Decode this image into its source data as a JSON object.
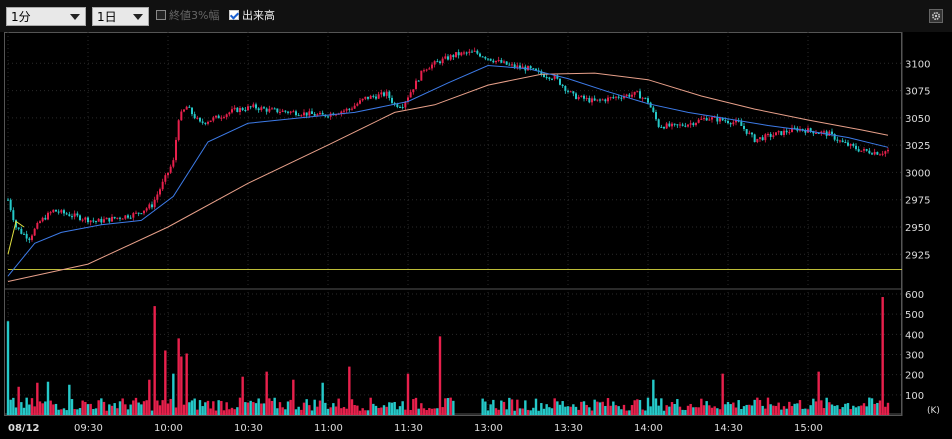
{
  "toolbar": {
    "interval_select": "1分",
    "range_select": "1日",
    "close3_label": "終値3%幅",
    "close3_checked": false,
    "volume_label": "出来高",
    "volume_checked": true,
    "settings_icon": "gear-icon"
  },
  "colors": {
    "up": "#e8204c",
    "down": "#25c9c9",
    "ma_short": "#3d7be8",
    "ma_long": "#e8a08a",
    "ma_first": "#e0e040",
    "base_line": "#d8d840",
    "background": "#000000"
  },
  "chart_data": [
    {
      "type": "candlestick",
      "ylim": [
        2895,
        3125
      ],
      "y_ticks": [
        "3100",
        "3075",
        "3050",
        "3025",
        "3000",
        "2975",
        "2950",
        "2925"
      ],
      "x_ticks": [
        "08/12",
        "09:30",
        "10:00",
        "10:30",
        "11:00",
        "11:30",
        "13:00",
        "13:30",
        "14:00",
        "14:30",
        "15:00"
      ],
      "x_tick_times": [
        0,
        30,
        60,
        90,
        120,
        150,
        180,
        210,
        240,
        270,
        300
      ],
      "reference_line": 2911,
      "price_path": [
        [
          0,
          2975
        ],
        [
          3,
          2950
        ],
        [
          5,
          2945
        ],
        [
          8,
          2940
        ],
        [
          12,
          2955
        ],
        [
          17,
          2965
        ],
        [
          25,
          2960
        ],
        [
          33,
          2955
        ],
        [
          40,
          2958
        ],
        [
          48,
          2962
        ],
        [
          54,
          2970
        ],
        [
          58,
          2990
        ],
        [
          62,
          3010
        ],
        [
          64,
          3050
        ],
        [
          67,
          3060
        ],
        [
          72,
          3045
        ],
        [
          78,
          3050
        ],
        [
          85,
          3057
        ],
        [
          92,
          3060
        ],
        [
          98,
          3057
        ],
        [
          108,
          3055
        ],
        [
          118,
          3052
        ],
        [
          128,
          3058
        ],
        [
          134,
          3068
        ],
        [
          138,
          3070
        ],
        [
          142,
          3072
        ],
        [
          145,
          3062
        ],
        [
          148,
          3062
        ],
        [
          152,
          3078
        ],
        [
          156,
          3095
        ],
        [
          162,
          3102
        ],
        [
          168,
          3108
        ],
        [
          175,
          3110
        ],
        [
          182,
          3103
        ],
        [
          188,
          3098
        ],
        [
          195,
          3095
        ],
        [
          200,
          3090
        ],
        [
          205,
          3087
        ],
        [
          212,
          3070
        ],
        [
          220,
          3065
        ],
        [
          230,
          3070
        ],
        [
          236,
          3072
        ],
        [
          240,
          3065
        ],
        [
          244,
          3043
        ],
        [
          250,
          3042
        ],
        [
          256,
          3045
        ],
        [
          262,
          3050
        ],
        [
          268,
          3048
        ],
        [
          274,
          3045
        ],
        [
          280,
          3030
        ],
        [
          288,
          3035
        ],
        [
          296,
          3040
        ],
        [
          304,
          3037
        ],
        [
          308,
          3035
        ],
        [
          313,
          3027
        ],
        [
          320,
          3020
        ],
        [
          327,
          3018
        ],
        [
          330,
          3020
        ]
      ],
      "ma_short": [
        [
          0,
          2905
        ],
        [
          10,
          2935
        ],
        [
          20,
          2945
        ],
        [
          35,
          2952
        ],
        [
          50,
          2956
        ],
        [
          62,
          2978
        ],
        [
          75,
          3028
        ],
        [
          90,
          3045
        ],
        [
          110,
          3050
        ],
        [
          130,
          3055
        ],
        [
          150,
          3065
        ],
        [
          165,
          3082
        ],
        [
          180,
          3098
        ],
        [
          195,
          3095
        ],
        [
          210,
          3086
        ],
        [
          225,
          3074
        ],
        [
          240,
          3063
        ],
        [
          255,
          3055
        ],
        [
          270,
          3049
        ],
        [
          285,
          3043
        ],
        [
          300,
          3038
        ],
        [
          315,
          3032
        ],
        [
          330,
          3023
        ]
      ],
      "ma_long": [
        [
          0,
          2900
        ],
        [
          30,
          2916
        ],
        [
          60,
          2950
        ],
        [
          90,
          2990
        ],
        [
          120,
          3025
        ],
        [
          145,
          3055
        ],
        [
          160,
          3062
        ],
        [
          180,
          3080
        ],
        [
          200,
          3090
        ],
        [
          220,
          3091
        ],
        [
          240,
          3085
        ],
        [
          260,
          3070
        ],
        [
          280,
          3058
        ],
        [
          300,
          3048
        ],
        [
          320,
          3039
        ],
        [
          330,
          3034
        ]
      ]
    },
    {
      "type": "bar",
      "title": "出来高",
      "unit": "(K)",
      "ylim": [
        0,
        600
      ],
      "y_ticks": [
        "600",
        "500",
        "400",
        "300",
        "200",
        "100"
      ],
      "baseline": 60,
      "spikes": [
        [
          0,
          465,
          "down"
        ],
        [
          4,
          140,
          "up"
        ],
        [
          11,
          160,
          "up"
        ],
        [
          15,
          165,
          "down"
        ],
        [
          23,
          150,
          "down"
        ],
        [
          53,
          175,
          "up"
        ],
        [
          55,
          540,
          "up"
        ],
        [
          59,
          320,
          "up"
        ],
        [
          62,
          205,
          "down"
        ],
        [
          64,
          380,
          "up"
        ],
        [
          65,
          290,
          "up"
        ],
        [
          67,
          305,
          "up"
        ],
        [
          88,
          190,
          "up"
        ],
        [
          97,
          215,
          "up"
        ],
        [
          107,
          175,
          "up"
        ],
        [
          118,
          160,
          "down"
        ],
        [
          128,
          240,
          "up"
        ],
        [
          150,
          205,
          "up"
        ],
        [
          162,
          390,
          "up"
        ],
        [
          242,
          175,
          "down"
        ],
        [
          268,
          205,
          "up"
        ],
        [
          304,
          215,
          "up"
        ],
        [
          328,
          585,
          "up"
        ]
      ]
    }
  ]
}
